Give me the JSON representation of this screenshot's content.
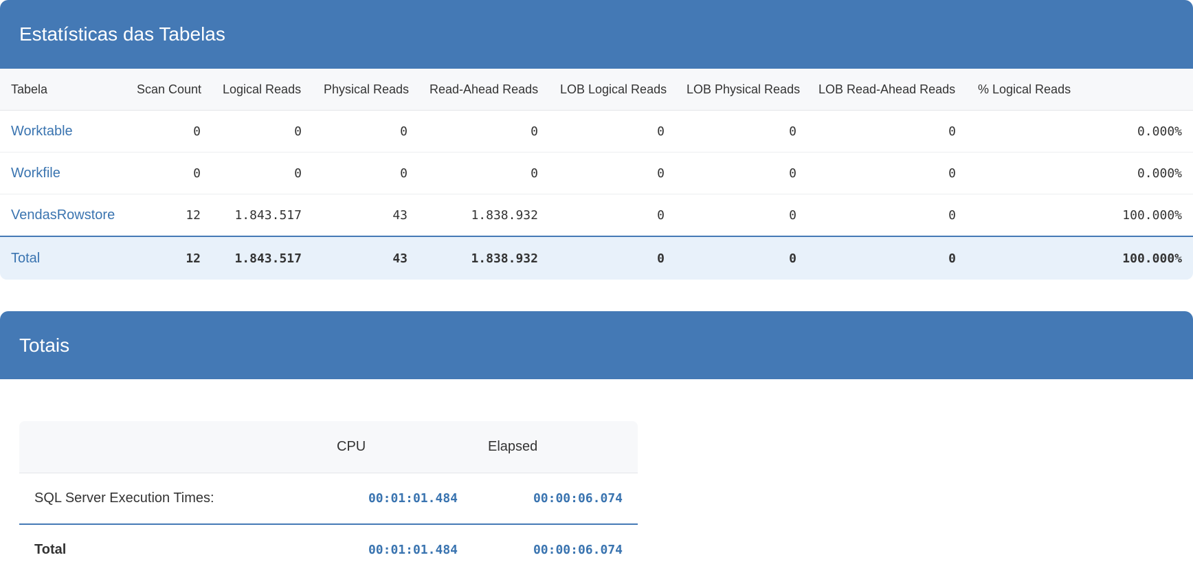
{
  "stats_panel": {
    "title": "Estatísticas das Tabelas",
    "columns": [
      "Tabela",
      "Scan Count",
      "Logical Reads",
      "Physical Reads",
      "Read-Ahead Reads",
      "LOB Logical Reads",
      "LOB Physical Reads",
      "LOB Read-Ahead Reads",
      "% Logical Reads"
    ],
    "rows": [
      {
        "name": "Worktable",
        "values": [
          "0",
          "0",
          "0",
          "0",
          "0",
          "0",
          "0",
          "0.000%"
        ]
      },
      {
        "name": "Workfile",
        "values": [
          "0",
          "0",
          "0",
          "0",
          "0",
          "0",
          "0",
          "0.000%"
        ]
      },
      {
        "name": "VendasRowstore",
        "values": [
          "12",
          "1.843.517",
          "43",
          "1.838.932",
          "0",
          "0",
          "0",
          "100.000%"
        ]
      }
    ],
    "total": {
      "name": "Total",
      "values": [
        "12",
        "1.843.517",
        "43",
        "1.838.932",
        "0",
        "0",
        "0",
        "100.000%"
      ]
    }
  },
  "totals_panel": {
    "title": "Totais",
    "columns": [
      "",
      "CPU",
      "Elapsed"
    ],
    "rows": [
      {
        "label": "SQL Server Execution Times:",
        "cpu": "00:01:01.484",
        "elapsed": "00:00:06.074"
      }
    ],
    "total": {
      "label": "Total",
      "cpu": "00:01:01.484",
      "elapsed": "00:00:06.074"
    }
  },
  "colors": {
    "header_bg": "#4479b5",
    "link": "#3a74b0",
    "total_row_bg": "#e8f1fa"
  }
}
